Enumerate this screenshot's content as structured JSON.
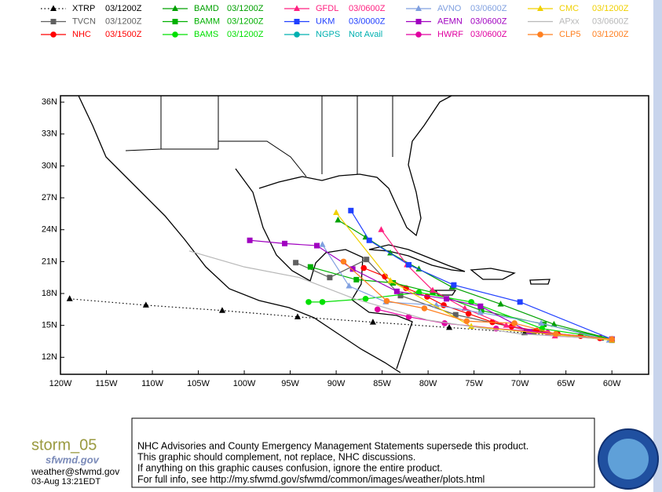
{
  "chart_data": {
    "type": "track",
    "xlim": [
      -120,
      -56
    ],
    "ylim": [
      10.4,
      36.6
    ],
    "xticks": [
      {
        "value": -120,
        "label": "120W"
      },
      {
        "value": -115,
        "label": "115W"
      },
      {
        "value": -110,
        "label": "110W"
      },
      {
        "value": -105,
        "label": "105W"
      },
      {
        "value": -100,
        "label": "100W"
      },
      {
        "value": -95,
        "label": "95W"
      },
      {
        "value": -90,
        "label": "90W"
      },
      {
        "value": -85,
        "label": "85W"
      },
      {
        "value": -80,
        "label": "80W"
      },
      {
        "value": -75,
        "label": "75W"
      },
      {
        "value": -70,
        "label": "70W"
      },
      {
        "value": -65,
        "label": "65W"
      },
      {
        "value": -60,
        "label": "60W"
      }
    ],
    "yticks": [
      {
        "value": 12,
        "label": "12N"
      },
      {
        "value": 15,
        "label": "15N"
      },
      {
        "value": 18,
        "label": "18N"
      },
      {
        "value": 21,
        "label": "21N"
      },
      {
        "value": 24,
        "label": "24N"
      },
      {
        "value": 27,
        "label": "27N"
      },
      {
        "value": 30,
        "label": "30N"
      },
      {
        "value": 33,
        "label": "33N"
      },
      {
        "value": 36,
        "label": "36N"
      }
    ],
    "series": [
      {
        "name": "XTRP",
        "time": "03/1200Z",
        "color": "#000000",
        "marker": "triangle",
        "line": "dotted",
        "x": [
          -119,
          -110.7,
          -102.4,
          -94.2,
          -86,
          -77.7,
          -69.5,
          -61.2
        ],
        "y": [
          17.5,
          16.9,
          16.4,
          15.8,
          15.3,
          14.8,
          14.3,
          13.8
        ]
      },
      {
        "name": "TVCN",
        "time": "03/1200Z",
        "color": "#606060",
        "marker": "square",
        "line": "solid",
        "x": [
          -60,
          -68.5,
          -77,
          -83,
          -86.7,
          -90.7,
          -94.4
        ],
        "y": [
          13.6,
          14.4,
          16,
          17.8,
          21.2,
          19.5,
          20.9
        ]
      },
      {
        "name": "NHC",
        "time": "03/1500Z",
        "color": "#ff0000",
        "marker": "circle",
        "line": "solid",
        "x": [
          -61.3,
          -63.4,
          -65.9,
          -68.2,
          -70.9,
          -73,
          -75.6,
          -78.3,
          -80.1,
          -82.4,
          -84.7,
          -87
        ],
        "y": [
          13.8,
          14,
          14.2,
          14.5,
          14.9,
          15.3,
          16.1,
          16.9,
          17.7,
          18.5,
          19.6,
          20.4
        ]
      },
      {
        "name": "BAMD",
        "time": "03/1200Z",
        "color": "#00a000",
        "marker": "triangle",
        "line": "solid",
        "x": [
          -60,
          -66.3,
          -72.1,
          -77.4,
          -81,
          -84.1,
          -86.8,
          -89.8
        ],
        "y": [
          13.7,
          15.1,
          17,
          18.6,
          20.3,
          21.8,
          23.3,
          24.9
        ]
      },
      {
        "name": "BAMM",
        "time": "03/1200Z",
        "color": "#00b000",
        "marker": "square",
        "line": "solid",
        "x": [
          -60,
          -67.4,
          -74.2,
          -79.5,
          -83.8,
          -87.8,
          -92.8
        ],
        "y": [
          13.7,
          15.1,
          16.4,
          18.1,
          19,
          19.3,
          20.5
        ]
      },
      {
        "name": "BAMS",
        "time": "03/1200Z",
        "color": "#00e000",
        "marker": "circle",
        "line": "solid",
        "x": [
          -60,
          -67.6,
          -75.3,
          -81,
          -86.8,
          -91.5,
          -93
        ],
        "y": [
          13.7,
          14.7,
          17.2,
          18.1,
          17.5,
          17.2,
          17.2
        ]
      },
      {
        "name": "GFDL",
        "time": "03/0600Z",
        "color": "#ff2080",
        "marker": "triangle",
        "line": "solid",
        "x": [
          -60,
          -66.2,
          -71.5,
          -76,
          -79.5,
          -82.3,
          -85.1
        ],
        "y": [
          13.7,
          14,
          15,
          16.6,
          18.3,
          20.7,
          24
        ]
      },
      {
        "name": "UKM",
        "time": "03/0000Z",
        "color": "#2040ff",
        "marker": "square",
        "line": "solid",
        "x": [
          -60,
          -70,
          -77.2,
          -82.1,
          -86.4,
          -88.4
        ],
        "y": [
          13.7,
          17.2,
          18.8,
          20.7,
          23,
          25.8
        ]
      },
      {
        "name": "NGPS",
        "time": "Not Avail",
        "color": "#00b0b0",
        "marker": "circle",
        "line": "solid",
        "x": [],
        "y": []
      },
      {
        "name": "AVNO",
        "time": "03/0600Z",
        "color": "#80a0e0",
        "marker": "triangle",
        "line": "solid",
        "x": [
          -60.3,
          -67.7,
          -74.3,
          -79.1,
          -84.6,
          -88.6,
          -91.5
        ],
        "y": [
          13.6,
          15.2,
          16.2,
          16.9,
          17.2,
          18.7,
          22.6
        ]
      },
      {
        "name": "AEMN",
        "time": "03/0600Z",
        "color": "#a000c0",
        "marker": "square",
        "line": "solid",
        "x": [
          -60,
          -69,
          -74.3,
          -78,
          -83.4,
          -88.2,
          -92.1,
          -95.6,
          -99.4
        ],
        "y": [
          13.7,
          14.4,
          16.8,
          17.5,
          18.2,
          20.3,
          22.5,
          22.7,
          23
        ]
      },
      {
        "name": "HWRF",
        "time": "03/0600Z",
        "color": "#e000a0",
        "marker": "circle",
        "line": "solid",
        "x": [
          -60,
          -67,
          -72.6,
          -78.2,
          -82.1,
          -85.5
        ],
        "y": [
          13.7,
          14.3,
          14.7,
          15.2,
          15.8,
          16.5
        ]
      },
      {
        "name": "CMC",
        "time": "03/1200Z",
        "color": "#f0d000",
        "marker": "triangle",
        "line": "solid",
        "x": [
          -60,
          -75.3,
          -84.1,
          -90
        ],
        "y": [
          13.6,
          14.9,
          19.2,
          25.6
        ]
      },
      {
        "name": "APxx",
        "time": "03/0600Z",
        "color": "#b8b8b8",
        "marker": "none",
        "line": "solid",
        "x": [
          -60,
          -70,
          -80,
          -88,
          -94,
          -100,
          -106
        ],
        "y": [
          13.7,
          14.2,
          15.5,
          17.5,
          19.5,
          20.5,
          22
        ]
      },
      {
        "name": "CLP5",
        "time": "03/1200Z",
        "color": "#ff8020",
        "marker": "circle",
        "line": "solid",
        "x": [
          -60,
          -66.1,
          -70.6,
          -75.8,
          -80.4,
          -84.5,
          -89.2
        ],
        "y": [
          13.7,
          14.2,
          15.2,
          15.4,
          16.6,
          17.3,
          21
        ]
      }
    ]
  },
  "footer": {
    "storm": "storm_05",
    "site": "sfwmd.gov",
    "email": "weather@sfwmd.gov",
    "timestamp": "03-Aug 13:21EDT",
    "notice": [
      "NHC Advisories and County Emergency Management Statements supersede this product.",
      "This graphic should complement, not replace, NHC discussions.",
      "If anything on this graphic causes confusion, ignore the entire product.",
      "For full info, see  http://my.sfwmd.gov/sfwmd/common/images/weather/plots.html"
    ]
  }
}
